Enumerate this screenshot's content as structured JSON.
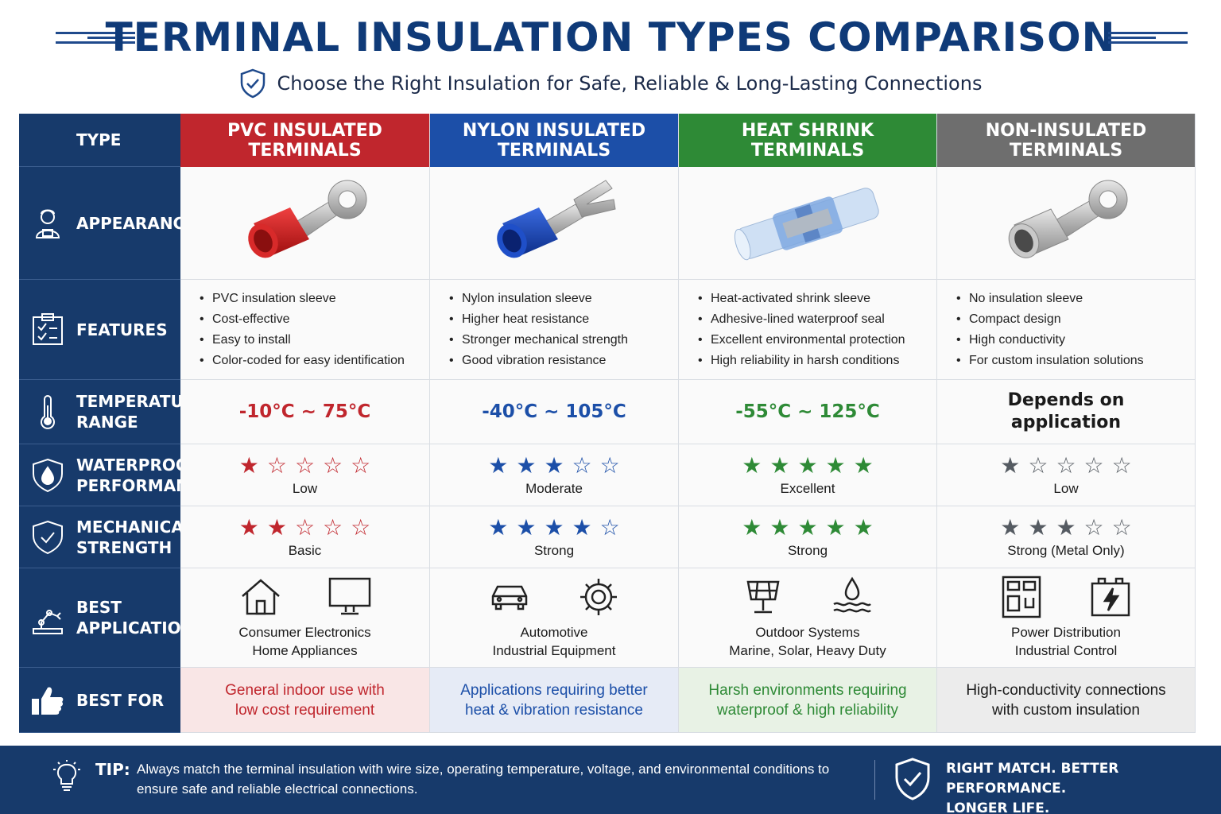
{
  "header": {
    "title": "TERMINAL INSULATION TYPES COMPARISON",
    "subtitle": "Choose the Right Insulation for Safe, Reliable & Long-Lasting Connections",
    "subtitle_icon": "shield-check-icon"
  },
  "colors": {
    "navy": "#173a6b",
    "pvc": "#c0262d",
    "nylon": "#1c4fa8",
    "heat_shrink": "#2e8a36",
    "non_insulated": "#6e6e6e"
  },
  "table": {
    "type_header": "TYPE",
    "columns": [
      {
        "name": "PVC INSULATED\nTERMINALS",
        "color": "#c0262d"
      },
      {
        "name": "NYLON INSULATED\nTERMINALS",
        "color": "#1c4fa8"
      },
      {
        "name": "HEAT SHRINK\nTERMINALS",
        "color": "#2e8a36"
      },
      {
        "name": "NON-INSULATED\nTERMINALS",
        "color": "#6e6e6e"
      }
    ],
    "row_labels": {
      "appearance": "APPEARANCE",
      "features": "FEATURES",
      "temperature": "TEMPERATURE\nRANGE",
      "waterproof": "WATERPROOF\nPERFORMANCE",
      "mechanical": "MECHANICAL\nSTRENGTH",
      "applications": "BEST\nAPPLICATIONS",
      "best_for": "BEST FOR"
    },
    "row_icons": {
      "appearance": "inspector-icon",
      "features": "clipboard-icon",
      "temperature": "thermometer-icon",
      "waterproof": "water-drop-shield-icon",
      "mechanical": "shield-check-icon",
      "applications": "robot-arm-icon",
      "best_for": "thumbs-up-icon"
    },
    "appearance_images": [
      "red-ring-terminal",
      "blue-fork-terminal",
      "clear-heat-shrink-butt-connector",
      "bare-metal-ring-terminal"
    ],
    "features": [
      [
        "PVC insulation sleeve",
        "Cost-effective",
        "Easy to install",
        "Color-coded for easy identification"
      ],
      [
        "Nylon insulation sleeve",
        "Higher heat resistance",
        "Stronger mechanical strength",
        "Good vibration resistance"
      ],
      [
        "Heat-activated shrink sleeve",
        "Adhesive-lined waterproof seal",
        "Excellent environmental protection",
        "High reliability in harsh conditions"
      ],
      [
        "No insulation sleeve",
        "Compact design",
        "High conductivity",
        "For custom insulation solutions"
      ]
    ],
    "temperature": [
      "-10°C ~ 75°C",
      "-40°C ~ 105°C",
      "-55°C ~ 125°C",
      "Depends on\napplication"
    ],
    "waterproof": [
      {
        "stars": 1,
        "max": 5,
        "label": "Low"
      },
      {
        "stars": 3,
        "max": 5,
        "label": "Moderate"
      },
      {
        "stars": 5,
        "max": 5,
        "label": "Excellent"
      },
      {
        "stars": 1,
        "max": 5,
        "label": "Low"
      }
    ],
    "mechanical": [
      {
        "stars": 2,
        "max": 5,
        "label": "Basic"
      },
      {
        "stars": 4,
        "max": 5,
        "label": "Strong"
      },
      {
        "stars": 5,
        "max": 5,
        "label": "Strong"
      },
      {
        "stars": 3,
        "max": 5,
        "label": "Strong (Metal Only)"
      }
    ],
    "applications": [
      {
        "icons": [
          "house-icon",
          "monitor-icon"
        ],
        "text": "Consumer Electronics\nHome Appliances"
      },
      {
        "icons": [
          "car-icon",
          "gear-icon"
        ],
        "text": "Automotive\nIndustrial Equipment"
      },
      {
        "icons": [
          "solar-panel-icon",
          "water-drop-waves-icon"
        ],
        "text": "Outdoor Systems\nMarine, Solar, Heavy Duty"
      },
      {
        "icons": [
          "switchboard-icon",
          "battery-bolt-icon"
        ],
        "text": "Power Distribution\nIndustrial Control"
      }
    ],
    "best_for": [
      "General indoor use with\nlow cost requirement",
      "Applications requiring better\nheat & vibration resistance",
      "Harsh environments requiring\nwaterproof & high reliability",
      "High-conductivity connections\nwith custom insulation"
    ]
  },
  "footer": {
    "tip_label": "TIP:",
    "tip_text": "Always match the terminal insulation with wire size, operating temperature, voltage, and environmental conditions to ensure safe and reliable electrical connections.",
    "slogan": "RIGHT MATCH. BETTER PERFORMANCE.\nLONGER LIFE.",
    "tip_icon": "lightbulb-icon",
    "slogan_icon": "shield-check-icon"
  }
}
